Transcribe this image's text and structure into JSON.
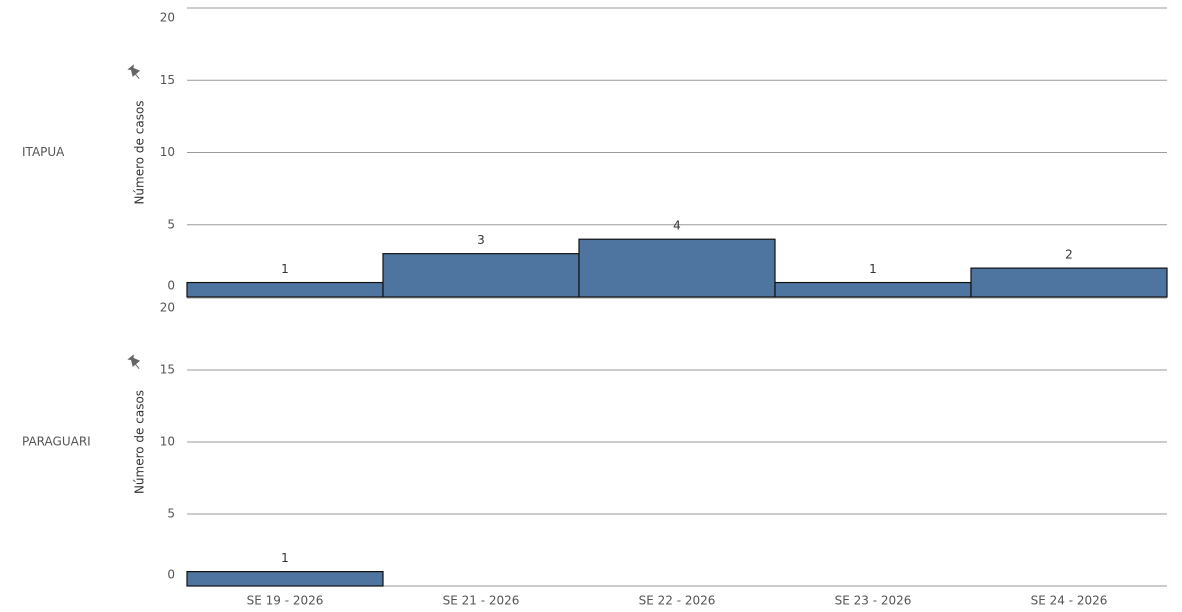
{
  "chart_data": {
    "type": "bar",
    "color": "#4e75a0",
    "categories": [
      "SE 19 - 2026",
      "SE 21 - 2026",
      "SE 22 - 2026",
      "SE 23 - 2026",
      "SE 24 - 2026"
    ],
    "panels": [
      {
        "title": "ITAPUA",
        "y_label": "Número de casos",
        "values": [
          1,
          3,
          4,
          1,
          2
        ],
        "ylim": [
          0,
          20
        ],
        "yticks": [
          0,
          5,
          10,
          15,
          20
        ]
      },
      {
        "title": "PARAGUARI",
        "y_label": "Número de casos",
        "values": [
          1,
          null,
          null,
          null,
          null
        ],
        "ylim": [
          0,
          20
        ],
        "yticks": [
          0,
          5,
          10,
          15,
          20
        ]
      }
    ],
    "grid": true
  }
}
